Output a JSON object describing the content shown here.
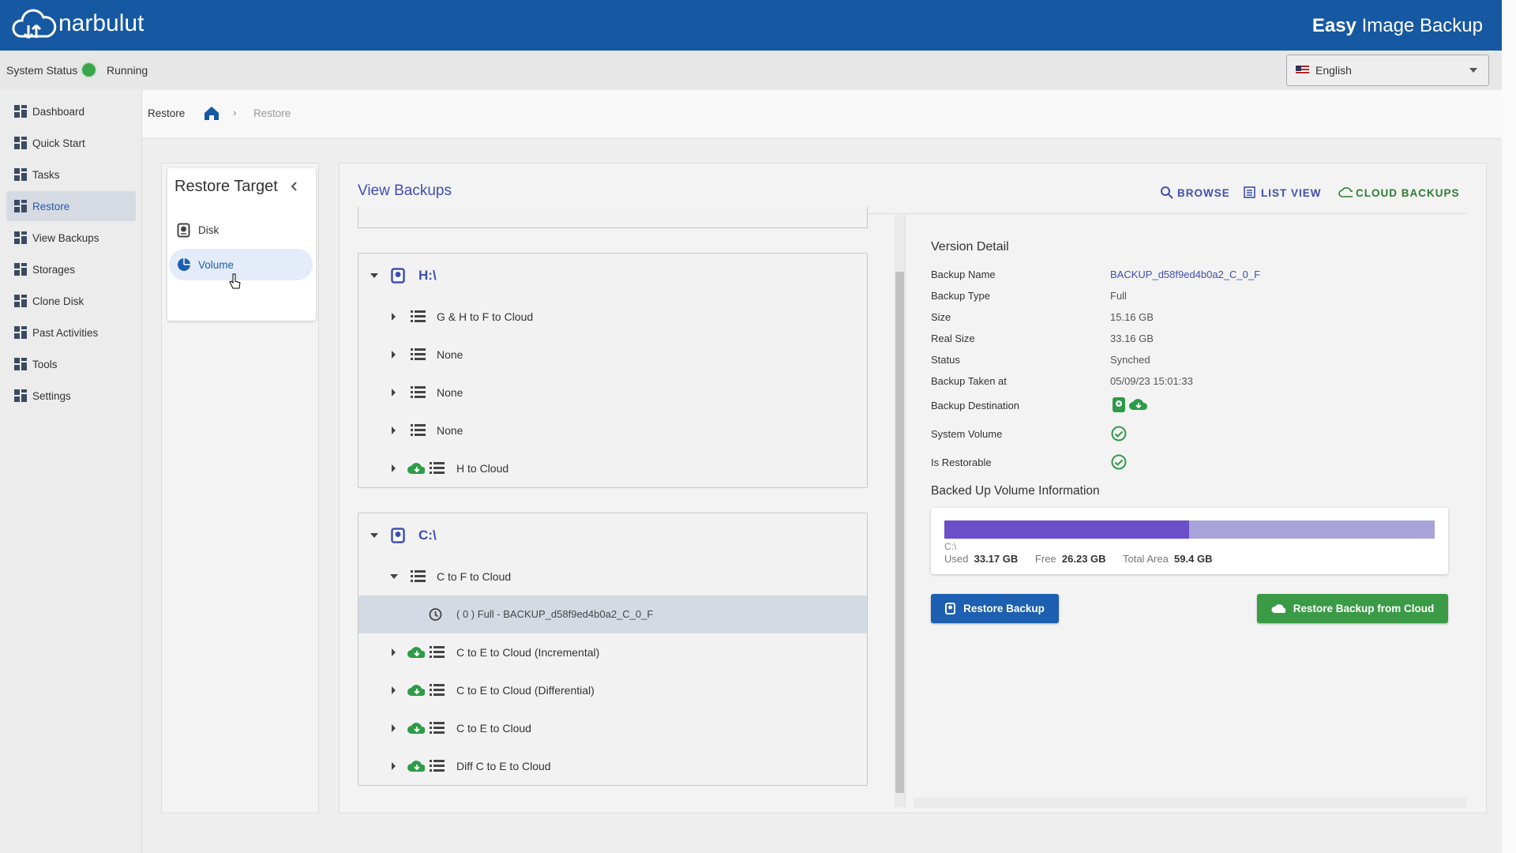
{
  "header": {
    "brand": "narbulut",
    "product_bold": "Easy",
    "product": "Image Backup"
  },
  "status": {
    "label": "System Status",
    "state": "Running",
    "language": "English"
  },
  "sidebar": [
    "Dashboard",
    "Quick Start",
    "Tasks",
    "Restore",
    "View Backups",
    "Storages",
    "Clone Disk",
    "Past Activities",
    "Tools",
    "Settings"
  ],
  "sidebar_active": 3,
  "breadcrumb": {
    "title": "Restore",
    "current": "Restore"
  },
  "restore_target": {
    "title": "Restore Target",
    "items": [
      "Disk",
      "Volume"
    ],
    "selected": 1
  },
  "view_backups": {
    "title": "View Backups",
    "actions": [
      "BROWSE",
      "LIST VIEW",
      "CLOUD BACKUPS"
    ],
    "groups": [
      {
        "drive": "H:\\",
        "rows": [
          {
            "label": "G & H to F to Cloud"
          },
          {
            "label": "None"
          },
          {
            "label": "None"
          },
          {
            "label": "None"
          },
          {
            "label": "H to Cloud",
            "cloud": true
          }
        ]
      },
      {
        "drive": "C:\\",
        "rows": [
          {
            "label": "C to F to Cloud",
            "expanded": true,
            "children": [
              {
                "label": "( 0 ) Full - BACKUP_d58f9ed4b0a2_C_0_F",
                "selected": true
              }
            ]
          },
          {
            "label": "C to E to Cloud (Incremental)",
            "cloud": true
          },
          {
            "label": "C to E to Cloud (Differential)",
            "cloud": true
          },
          {
            "label": "C to E to Cloud",
            "cloud": true
          },
          {
            "label": "Diff C to E to Cloud",
            "cloud": true
          }
        ]
      }
    ]
  },
  "version_detail": {
    "title": "Version Detail",
    "fields": [
      {
        "label": "Backup Name",
        "value": "BACKUP_d58f9ed4b0a2_C_0_F"
      },
      {
        "label": "Backup Type",
        "value": "Full"
      },
      {
        "label": "Size",
        "value": "15.16 GB"
      },
      {
        "label": "Real Size",
        "value": "33.16 GB"
      },
      {
        "label": "Status",
        "value": "Synched"
      },
      {
        "label": "Backup Taken at",
        "value": "05/09/23 15:01:33"
      },
      {
        "label": "Backup Destination"
      },
      {
        "label": "System Volume"
      },
      {
        "label": "Is Restorable"
      }
    ],
    "volume_info": {
      "title": "Backed Up Volume Information",
      "volume": "C:\\",
      "used_label": "Used",
      "used": "33.17 GB",
      "free_label": "Free",
      "free": "26.23 GB",
      "total_label": "Total Area",
      "total": "59.4 GB"
    },
    "buttons": [
      "Restore Backup",
      "Restore Backup from Cloud"
    ]
  }
}
